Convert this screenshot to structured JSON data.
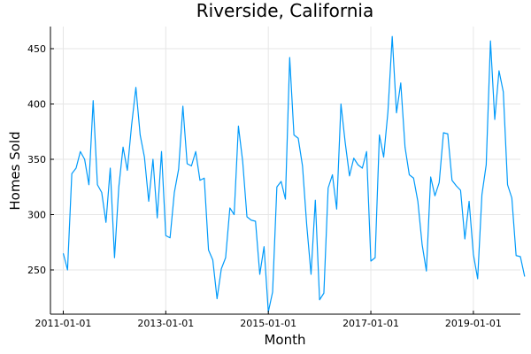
{
  "chart_data": {
    "type": "line",
    "title": "Riverside, California",
    "xlabel": "Month",
    "ylabel": "Homes Sold",
    "x_start": "2011-01-01",
    "x_frequency": "monthly",
    "x_ticks": [
      "2011-01-01",
      "2013-01-01",
      "2015-01-01",
      "2017-01-01",
      "2019-01-01"
    ],
    "y_ticks": [
      250,
      300,
      350,
      400,
      450
    ],
    "xlim": [
      "2010-10-01",
      "2019-12-01"
    ],
    "ylim": [
      210,
      470
    ],
    "grid": true,
    "legend": "none",
    "color": "#009AFA",
    "series": [
      {
        "values": [
          265,
          250,
          337,
          342,
          357,
          350,
          327,
          403,
          327,
          320,
          293,
          342,
          261,
          325,
          361,
          340,
          381,
          415,
          372,
          352,
          312,
          350,
          297,
          357,
          281,
          279,
          320,
          341,
          398,
          346,
          344,
          357,
          331,
          333,
          268,
          259,
          224,
          251,
          261,
          306,
          300,
          380,
          348,
          298,
          295,
          294,
          246,
          271,
          212,
          230,
          325,
          330,
          314,
          442,
          372,
          369,
          344,
          290,
          246,
          313,
          223,
          229,
          324,
          336,
          305,
          400,
          365,
          335,
          351,
          345,
          342,
          357,
          258,
          261,
          372,
          352,
          393,
          461,
          392,
          419,
          361,
          336,
          333,
          312,
          273,
          249,
          334,
          317,
          329,
          374,
          373,
          331,
          326,
          322,
          278,
          312,
          264,
          242,
          318,
          345,
          457,
          386,
          430,
          411,
          327,
          315,
          263,
          262,
          244
        ]
      }
    ]
  }
}
